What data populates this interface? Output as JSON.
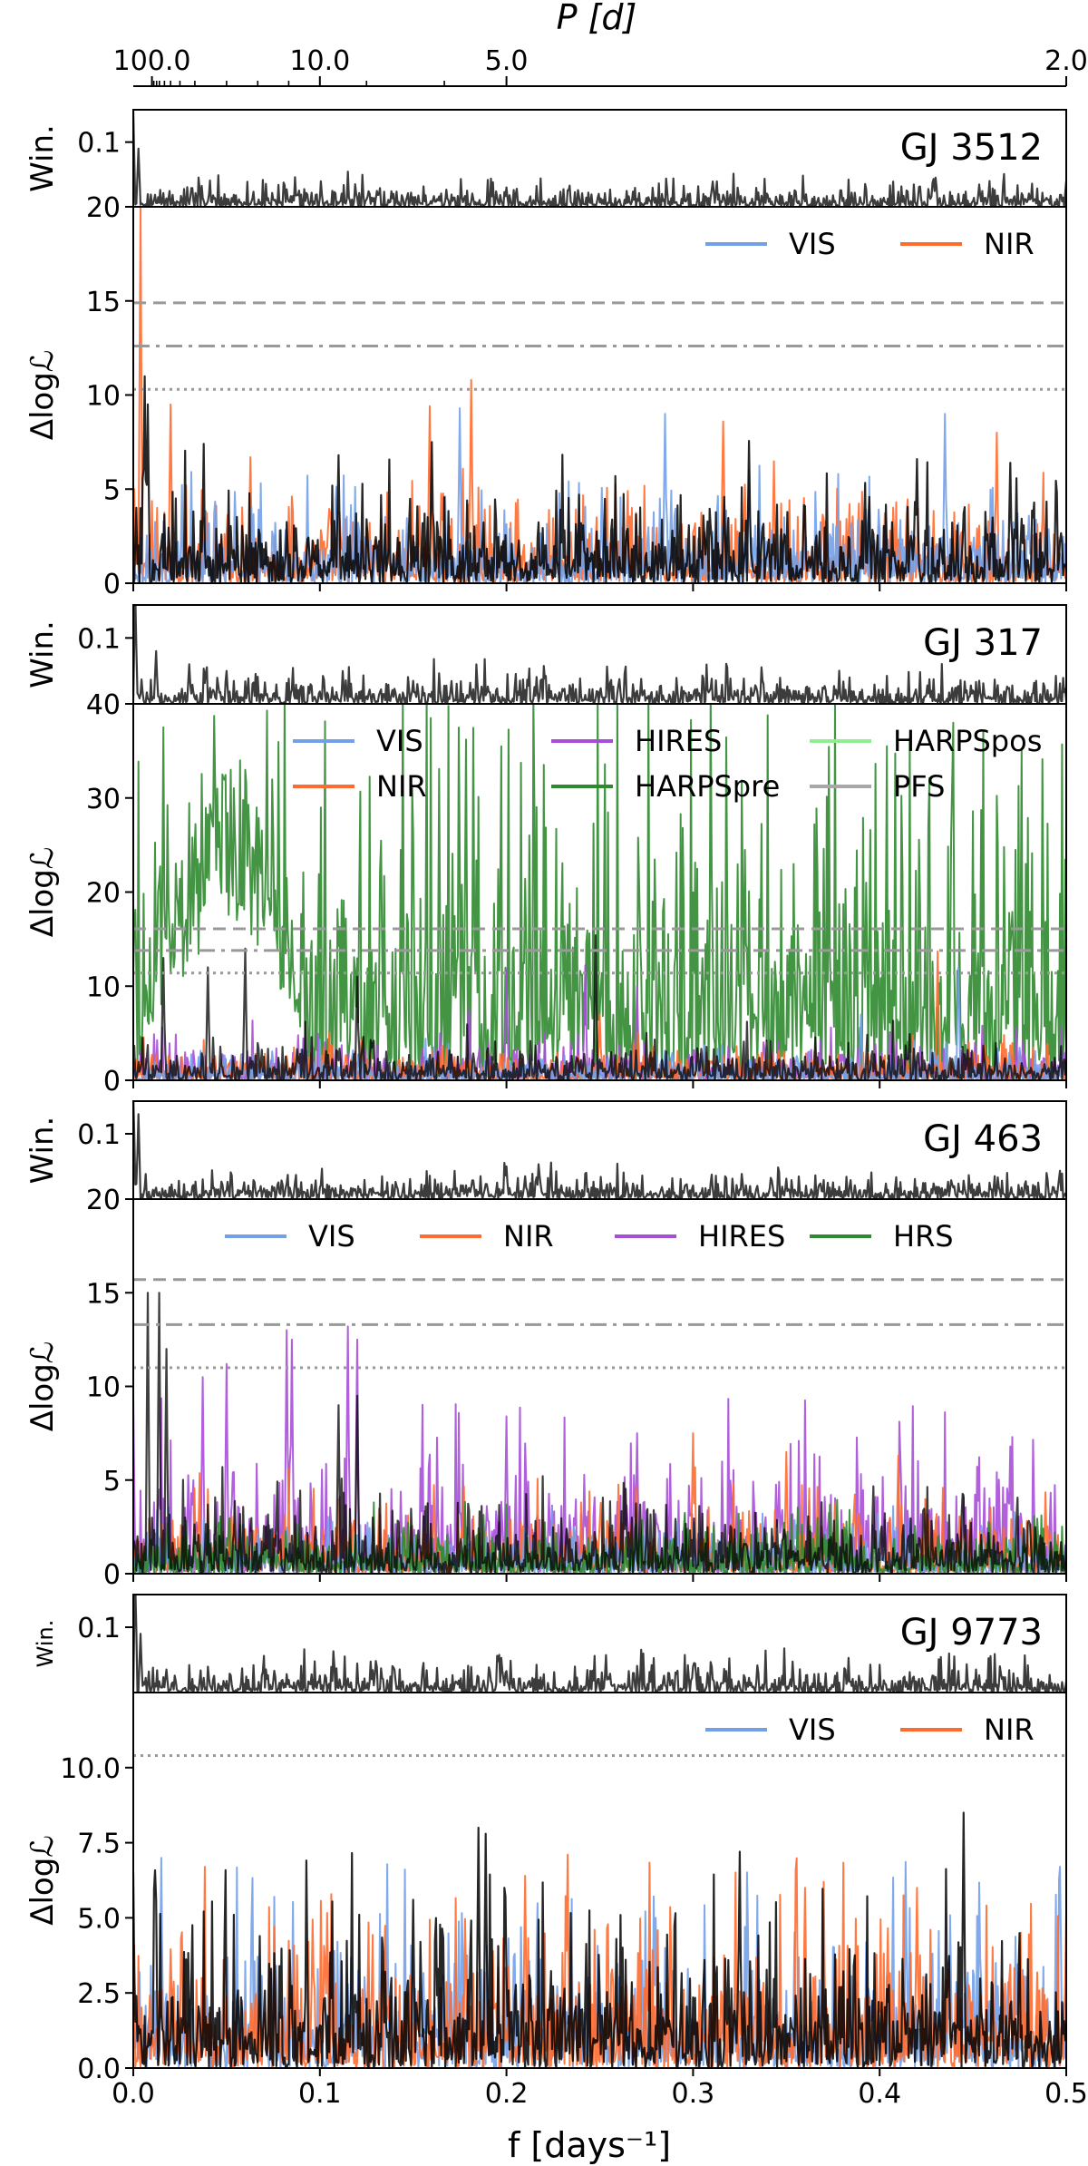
{
  "figure": {
    "top_axis_label": "P [d]",
    "x_axis_label": "f [days⁻¹]",
    "window_ylabel": "Win.",
    "power_ylabel": "Δlogℒ",
    "top_ticks": [
      {
        "f": 0.01,
        "label": "100.0"
      },
      {
        "f": 0.1,
        "label": "10.0"
      },
      {
        "f": 0.2,
        "label": "5.0"
      },
      {
        "f": 0.5,
        "label": "2.0"
      }
    ],
    "x_ticks": [
      "0.0",
      "0.1",
      "0.2",
      "0.3",
      "0.4",
      "0.5"
    ],
    "xlim": [
      0.0,
      0.5
    ]
  },
  "colors": {
    "VIS": "#74a0e8",
    "NIR": "#ff6a2e",
    "HIRES": "#a64fd6",
    "HARPSpre": "#2f8a2f",
    "HARPSpos": "#90ee90",
    "PFS": "#a8a8a8",
    "HRS": "#2f8a2f",
    "combined": "#000000",
    "window": "#3c3c3c",
    "threshold": "#999999"
  },
  "chart_data": [
    {
      "type": "line",
      "star": "GJ 3512",
      "window": {
        "ylim": [
          0,
          0.15
        ],
        "yticks": [
          0.1
        ],
        "peaks": [
          [
            0.0,
            0.15
          ],
          [
            0.003,
            0.09
          ],
          [
            0.2,
            0.03
          ],
          [
            0.5,
            0.04
          ]
        ],
        "base": 0.02
      },
      "power": {
        "ylim": [
          0,
          20
        ],
        "yticks": [
          "0",
          "5",
          "10",
          "15",
          "20"
        ],
        "thresholds": [
          14.9,
          12.6,
          10.3
        ],
        "legend": [
          {
            "name": "VIS",
            "col": 0,
            "row": 0
          },
          {
            "name": "NIR",
            "col": 1,
            "row": 0
          }
        ],
        "legend_cols": 2,
        "series": [
          {
            "name": "NIR",
            "base": 2.2,
            "peaks": [
              [
                0.004,
                20
              ],
              [
                0.02,
                9.5
              ],
              [
                0.063,
                6.7
              ],
              [
                0.159,
                9.4
              ],
              [
                0.181,
                10.8
              ],
              [
                0.316,
                8.6
              ],
              [
                0.463,
                8.0
              ]
            ]
          },
          {
            "name": "VIS",
            "base": 2.0,
            "peaks": [
              [
                0.175,
                9.3
              ],
              [
                0.285,
                9.0
              ],
              [
                0.435,
                9.0
              ],
              [
                0.33,
                6.0
              ]
            ]
          },
          {
            "name": "combined",
            "base": 2.4,
            "peaks": [
              [
                0.006,
                11.0
              ],
              [
                0.008,
                9.5
              ],
              [
                0.11,
                6.8
              ],
              [
                0.16,
                7.5
              ],
              [
                0.33,
                7.0
              ],
              [
                0.42,
                6.6
              ],
              [
                0.47,
                6.4
              ]
            ]
          }
        ]
      }
    },
    {
      "type": "line",
      "star": "GJ 317",
      "window": {
        "ylim": [
          0,
          0.15
        ],
        "yticks": [
          0.1
        ],
        "peaks": [
          [
            0.001,
            0.17
          ],
          [
            0.012,
            0.08
          ],
          [
            0.03,
            0.06
          ],
          [
            0.05,
            0.05
          ],
          [
            0.15,
            0.035
          ]
        ],
        "base": 0.025
      },
      "power": {
        "ylim": [
          0,
          40
        ],
        "yticks": [
          "0",
          "10",
          "20",
          "30",
          "40"
        ],
        "thresholds": [
          16.1,
          13.8,
          11.4
        ],
        "legend": [
          {
            "name": "VIS",
            "col": 0,
            "row": 0
          },
          {
            "name": "HIRES",
            "col": 1,
            "row": 0
          },
          {
            "name": "HARPSpos",
            "col": 2,
            "row": 0
          },
          {
            "name": "NIR",
            "col": 0,
            "row": 1
          },
          {
            "name": "HARPSpre",
            "col": 1,
            "row": 1
          },
          {
            "name": "PFS",
            "col": 2,
            "row": 1
          }
        ],
        "legend_cols": 3,
        "series": [
          {
            "name": "HARPSpre",
            "base": 18,
            "envelope": [
              0.005,
              0.092,
              0.05,
              34
            ],
            "peaks": [
              [
                0.016,
                37.5
              ],
              [
                0.048,
                32.5
              ],
              [
                0.052,
                33.0
              ],
              [
                0.057,
                34.0
              ],
              [
                0.06,
                33.0
              ],
              [
                0.045,
                31.0
              ],
              [
                0.03,
                29.0
              ],
              [
                0.075,
                26.0
              ],
              [
                0.082,
                21.5
              ]
            ]
          },
          {
            "name": "HIRES",
            "base": 2.0,
            "peaks": [
              [
                0.2,
                11.8
              ],
              [
                0.242,
                12.2
              ],
              [
                0.27,
                10.0
              ],
              [
                0.18,
                7.5
              ]
            ]
          },
          {
            "name": "NIR",
            "base": 1.6,
            "peaks": [
              [
                0.431,
                13.7
              ],
              [
                0.25,
                7.0
              ]
            ]
          },
          {
            "name": "VIS",
            "base": 1.4,
            "peaks": [
              [
                0.442,
                12.0
              ],
              [
                0.39,
                7.0
              ]
            ]
          },
          {
            "name": "combined",
            "base": 2.0,
            "peaks": [
              [
                0.248,
                15.4
              ],
              [
                0.12,
                11.0
              ],
              [
                0.06,
                14.0
              ],
              [
                0.016,
                13.0
              ],
              [
                0.04,
                12.0
              ]
            ]
          }
        ]
      }
    },
    {
      "type": "line",
      "star": "GJ 463",
      "window": {
        "ylim": [
          0,
          0.15
        ],
        "yticks": [
          0.1
        ],
        "peaks": [
          [
            0.0,
            0.2
          ],
          [
            0.003,
            0.13
          ],
          [
            0.2,
            0.05
          ],
          [
            0.21,
            0.035
          ]
        ],
        "base": 0.02
      },
      "power": {
        "ylim": [
          0,
          20
        ],
        "yticks": [
          "0",
          "5",
          "10",
          "15",
          "20"
        ],
        "thresholds": [
          15.7,
          13.3,
          11.0
        ],
        "legend": [
          {
            "name": "VIS",
            "col": 0,
            "row": 0
          },
          {
            "name": "NIR",
            "col": 1,
            "row": 0
          },
          {
            "name": "HIRES",
            "col": 2,
            "row": 0
          },
          {
            "name": "HRS",
            "col": 3,
            "row": 0
          }
        ],
        "legend_cols": 4,
        "series": [
          {
            "name": "HIRES",
            "base": 3.2,
            "peaks": [
              [
                0.0,
                9.5
              ],
              [
                0.037,
                10.5
              ],
              [
                0.05,
                11.2
              ],
              [
                0.082,
                13.0
              ],
              [
                0.085,
                12.5
              ],
              [
                0.115,
                13.2
              ],
              [
                0.12,
                12.5
              ],
              [
                0.2,
                8.4
              ],
              [
                0.27,
                7.5
              ],
              [
                0.47,
                6.8
              ]
            ]
          },
          {
            "name": "NIR",
            "base": 1.8,
            "peaks": [
              [
                0.3,
                7.5
              ],
              [
                0.35,
                6.5
              ],
              [
                0.41,
                6.3
              ]
            ]
          },
          {
            "name": "VIS",
            "base": 1.2,
            "peaks": []
          },
          {
            "name": "HRS",
            "base": 1.3,
            "peaks": []
          },
          {
            "name": "combined",
            "base": 2.0,
            "peaks": [
              [
                0.008,
                15.0
              ],
              [
                0.014,
                15.0
              ],
              [
                0.018,
                12.0
              ],
              [
                0.11,
                9.0
              ],
              [
                0.12,
                9.5
              ]
            ]
          }
        ]
      }
    },
    {
      "type": "line",
      "star": "GJ 9773",
      "window": {
        "ylim": [
          0,
          0.15
        ],
        "yticks": [
          0.1
        ],
        "peaks": [
          [
            0.001,
            0.19
          ],
          [
            0.004,
            0.09
          ],
          [
            0.14,
            0.035
          ],
          [
            0.3,
            0.04
          ],
          [
            0.31,
            0.04
          ]
        ],
        "base": 0.025
      },
      "power": {
        "ylim": [
          0,
          12.5
        ],
        "yticks": [
          "0.0",
          "2.5",
          "5.0",
          "7.5",
          "10.0"
        ],
        "ytick_values": [
          0,
          2.5,
          5,
          7.5,
          10
        ],
        "thresholds": [
          10.4
        ],
        "threshold_styles": [
          "dotted"
        ],
        "legend": [
          {
            "name": "VIS",
            "col": 0,
            "row": 0
          },
          {
            "name": "NIR",
            "col": 1,
            "row": 0
          }
        ],
        "legend_cols": 2,
        "series": [
          {
            "name": "VIS",
            "base": 2.2,
            "peaks": [
              [
                0.015,
                7.0
              ],
              [
                0.28,
                5.0
              ]
            ]
          },
          {
            "name": "NIR",
            "base": 2.4,
            "peaks": [
              [
                0.21,
                6.4
              ],
              [
                0.233,
                7.1
              ],
              [
                0.36,
                6.0
              ],
              [
                0.37,
                6.2
              ],
              [
                0.42,
                6.0
              ],
              [
                0.5,
                5.2
              ]
            ]
          },
          {
            "name": "combined",
            "base": 2.3,
            "peaks": [
              [
                0.0,
                6.5
              ],
              [
                0.185,
                8.0
              ],
              [
                0.189,
                7.8
              ],
              [
                0.325,
                7.2
              ],
              [
                0.445,
                8.5
              ],
              [
                0.15,
                5.6
              ]
            ]
          }
        ]
      }
    }
  ]
}
